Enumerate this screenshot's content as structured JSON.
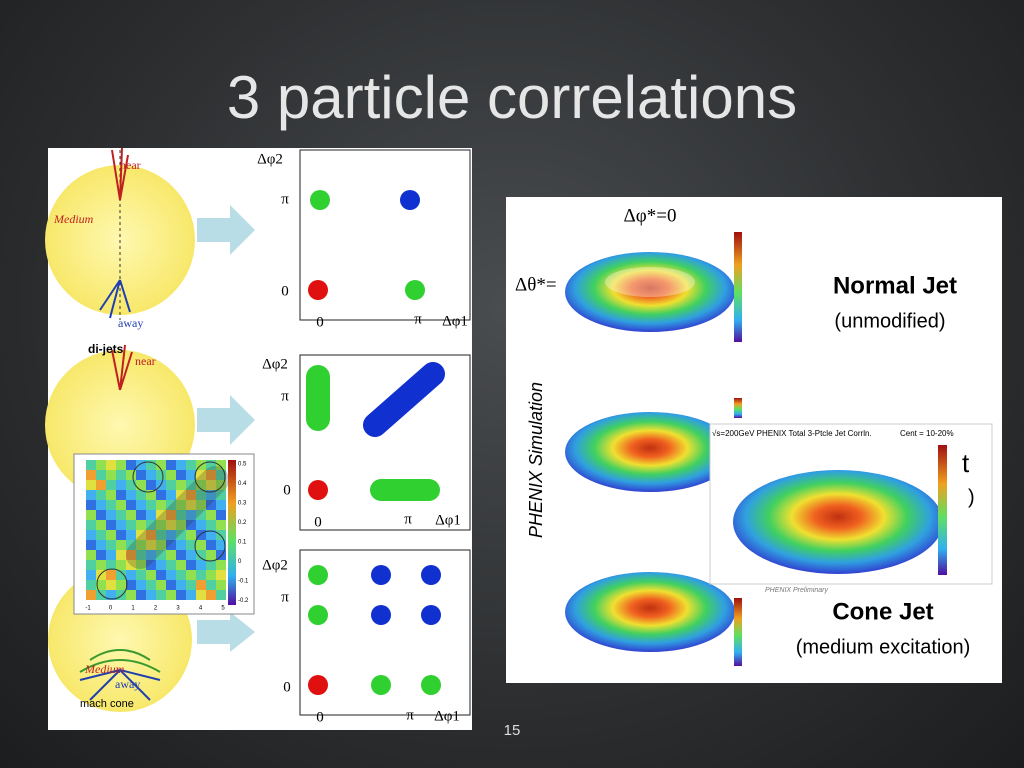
{
  "slide": {
    "title": "3 particle correlations",
    "page_number": "15"
  },
  "left_panel": {
    "labels": [
      "near",
      "Medium",
      "away",
      "di-jets",
      "near",
      "Medium",
      "away",
      "mach cone"
    ]
  },
  "plots": [
    {
      "y_axis": "Δφ2",
      "x_axis": "Δφ1",
      "y_ticks": [
        "π",
        "0"
      ],
      "x_ticks": [
        "0",
        "π"
      ]
    },
    {
      "y_axis": "Δφ2",
      "x_axis": "Δφ1",
      "y_ticks": [
        "π",
        "0"
      ],
      "x_ticks": [
        "0",
        "π"
      ]
    },
    {
      "y_axis": "Δφ2",
      "x_axis": "Δφ1",
      "y_ticks": [
        "π",
        "0"
      ],
      "x_ticks": [
        "0",
        "π"
      ]
    }
  ],
  "heatmap": {
    "colorbar_ticks": [
      "0.5",
      "0.4",
      "0.3",
      "0.2",
      "0.1",
      "0",
      "-0.1",
      "-0.2"
    ],
    "x_ticks": [
      "-1",
      "0",
      "1",
      "2",
      "3",
      "4",
      "5"
    ]
  },
  "right_panel": {
    "top_label": "Δφ*=0",
    "side_label": "Δθ*=",
    "vertical_label": "PHENIX Simulation",
    "jets": [
      {
        "name": "Normal Jet",
        "note": "(unmodified)"
      },
      {
        "name": "Cone Jet",
        "note": "(medium excitation)"
      }
    ],
    "inset": {
      "title": "√s=200GeV PHENIX Total 3-Ptcle Jet Corrln.",
      "centrality": "Cent = 10-20%",
      "preliminary": "PHENIX Preliminary",
      "clipped": [
        "t",
        ")"
      ]
    }
  }
}
